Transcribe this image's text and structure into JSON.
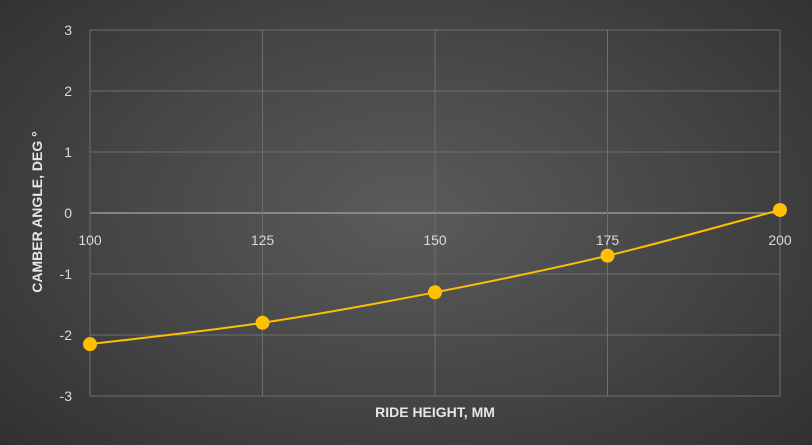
{
  "chart_data": {
    "type": "line",
    "title": "",
    "xlabel": "RIDE HEIGHT, MM",
    "ylabel": "CAMBER ANGLE, DEG °",
    "x": [
      100,
      125,
      150,
      175,
      200
    ],
    "xlim": [
      100,
      200
    ],
    "ylim": [
      -3,
      3
    ],
    "xticks": [
      "100",
      "125",
      "150",
      "175",
      "200"
    ],
    "yticks": [
      "3",
      "2",
      "1",
      "0",
      "-1",
      "-2",
      "-3"
    ],
    "series": [
      {
        "values": [
          -2.15,
          -1.8,
          -1.3,
          -0.7,
          0.05
        ]
      }
    ],
    "grid": true,
    "smooth": true,
    "markers": true,
    "legend": "none",
    "colors": {
      "line": "#ffc000",
      "marker": "#ffc000",
      "grid": "#6e6e6e",
      "zero_axis": "#a6a6a6",
      "tick_text": "#d9d9d9",
      "axis_title": "#e6e6e6"
    }
  }
}
